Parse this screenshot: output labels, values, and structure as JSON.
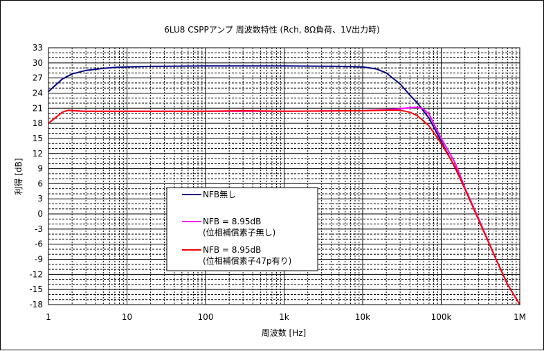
{
  "chart_data": {
    "type": "line",
    "title": "6LU8 CSPPアンプ 周波数特性 (Rch, 8Ω負荷、1V出力時)",
    "xlabel": "周波数 [Hz]",
    "ylabel": "利得 [dB]",
    "x_scale": "log",
    "xlim": [
      1,
      1000000
    ],
    "ylim": [
      -18,
      33
    ],
    "x_ticks": [
      1,
      10,
      100,
      1000,
      10000,
      100000,
      1000000
    ],
    "x_tick_labels": [
      "1",
      "10",
      "100",
      "1k",
      "10k",
      "100k",
      "1M"
    ],
    "y_ticks": [
      33,
      30,
      27,
      24,
      21,
      18,
      15,
      12,
      9,
      6,
      3,
      0,
      -3,
      -6,
      -9,
      -12,
      -15,
      -18
    ],
    "y_tick_labels": [
      "33",
      "30",
      "27",
      "24",
      "21",
      "18",
      "15",
      "12",
      "9",
      "6",
      "3",
      "0",
      "-3",
      "-6",
      "-9",
      "-12",
      "-15",
      "-18"
    ],
    "grid": true,
    "legend_position": "lower-left",
    "series": [
      {
        "name": "NFB無し",
        "color": "#000080",
        "points": [
          [
            1,
            24.3
          ],
          [
            1.5,
            26.8
          ],
          [
            2,
            27.8
          ],
          [
            3,
            28.5
          ],
          [
            5,
            28.9
          ],
          [
            7,
            29.1
          ],
          [
            10,
            29.2
          ],
          [
            20,
            29.3
          ],
          [
            100,
            29.4
          ],
          [
            1000,
            29.4
          ],
          [
            5000,
            29.3
          ],
          [
            10000,
            29.2
          ],
          [
            15000,
            28.8
          ],
          [
            20000,
            28.0
          ],
          [
            30000,
            25.8
          ],
          [
            40000,
            23.6
          ],
          [
            50000,
            22.0
          ],
          [
            70000,
            19.0
          ],
          [
            100000,
            14.4
          ],
          [
            150000,
            9.2
          ],
          [
            200000,
            5.0
          ],
          [
            300000,
            -1.2
          ],
          [
            500000,
            -9.0
          ],
          [
            700000,
            -14.0
          ],
          [
            1000000,
            -18.0
          ]
        ]
      },
      {
        "name": "NFB = 8.95dB\n(位相補償素子無し)",
        "color": "#ff00ff",
        "points": [
          [
            1,
            18.0
          ],
          [
            1.5,
            20.2
          ],
          [
            1.8,
            20.6
          ],
          [
            2,
            20.5
          ],
          [
            3,
            20.4
          ],
          [
            10,
            20.4
          ],
          [
            100,
            20.4
          ],
          [
            1000,
            20.4
          ],
          [
            10000,
            20.5
          ],
          [
            20000,
            20.7
          ],
          [
            30000,
            20.9
          ],
          [
            40000,
            21.1
          ],
          [
            50000,
            21.2
          ],
          [
            60000,
            20.8
          ],
          [
            70000,
            19.8
          ],
          [
            100000,
            15.0
          ],
          [
            150000,
            10.2
          ],
          [
            200000,
            5.2
          ],
          [
            300000,
            -1.0
          ],
          [
            500000,
            -9.0
          ],
          [
            700000,
            -14.0
          ],
          [
            1000000,
            -18.0
          ]
        ]
      },
      {
        "name": "NFB = 8.95dB\n(位相補償素子47p有り)",
        "color": "#ff0000",
        "points": [
          [
            1,
            18.0
          ],
          [
            1.5,
            20.2
          ],
          [
            1.8,
            20.6
          ],
          [
            2,
            20.5
          ],
          [
            3,
            20.4
          ],
          [
            10,
            20.4
          ],
          [
            100,
            20.4
          ],
          [
            300,
            20.5
          ],
          [
            1000,
            20.4
          ],
          [
            10000,
            20.5
          ],
          [
            20000,
            20.6
          ],
          [
            30000,
            20.6
          ],
          [
            40000,
            20.2
          ],
          [
            50000,
            19.5
          ],
          [
            70000,
            17.5
          ],
          [
            100000,
            14.0
          ],
          [
            150000,
            9.4
          ],
          [
            200000,
            5.0
          ],
          [
            300000,
            -1.2
          ],
          [
            500000,
            -9.0
          ],
          [
            700000,
            -14.0
          ],
          [
            1000000,
            -18.0
          ]
        ]
      }
    ]
  }
}
